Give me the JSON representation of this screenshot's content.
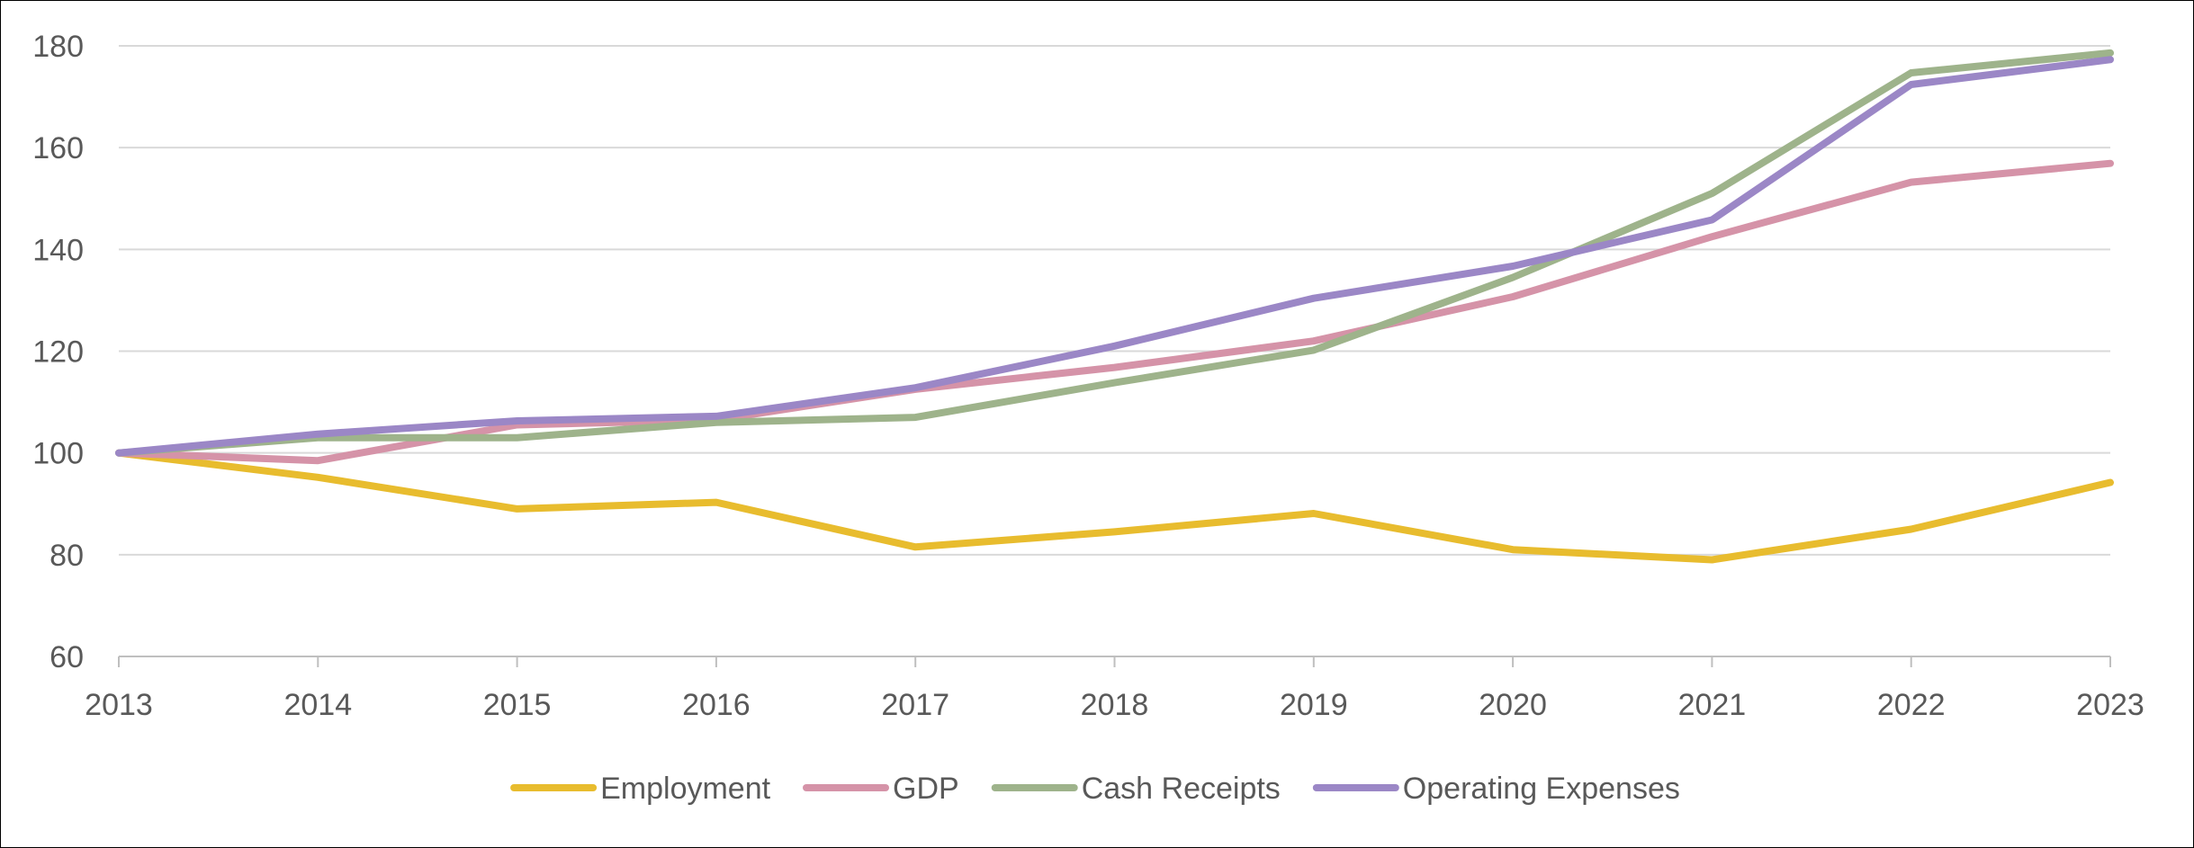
{
  "chart_data": {
    "type": "line",
    "title": "",
    "xlabel": "",
    "ylabel": "",
    "x": [
      "2013",
      "2014",
      "2015",
      "2016",
      "2017",
      "2018",
      "2019",
      "2020",
      "2021",
      "2022",
      "2023"
    ],
    "ylim": [
      60,
      180
    ],
    "yticks": [
      "60",
      "80",
      "100",
      "120",
      "140",
      "160",
      "180"
    ],
    "grid": "horizontal",
    "legend": "bottom",
    "series": [
      {
        "name": "Employment",
        "color": "#E8BC2E",
        "values": [
          100,
          95.2,
          89.0,
          90.3,
          81.5,
          84.5,
          88.1,
          81.0,
          79.0,
          85.0,
          94.2
        ]
      },
      {
        "name": "GDP",
        "color": "#D593A8",
        "values": [
          100,
          98.5,
          105.5,
          106.5,
          112.5,
          116.8,
          122.0,
          130.7,
          142.5,
          153.2,
          156.9
        ]
      },
      {
        "name": "Cash Receipts",
        "color": "#9EB38B",
        "values": [
          100,
          103.0,
          103.0,
          106.0,
          107.0,
          113.8,
          120.2,
          134.5,
          151.0,
          174.7,
          178.6
        ]
      },
      {
        "name": "Operating Expenses",
        "color": "#9B87C6",
        "values": [
          100,
          103.7,
          106.3,
          107.2,
          112.8,
          121.0,
          130.4,
          136.7,
          145.8,
          172.4,
          177.3
        ]
      }
    ]
  }
}
